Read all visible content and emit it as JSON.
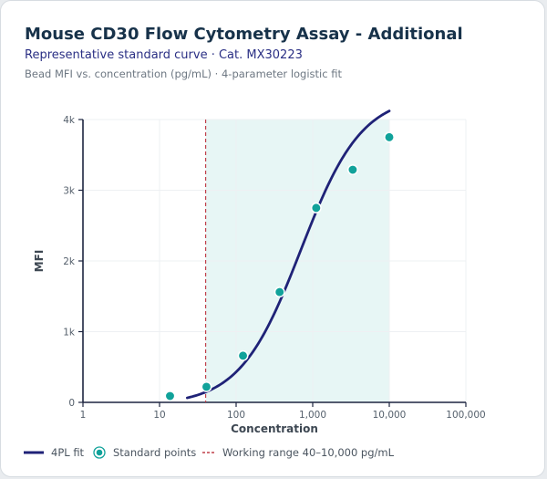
{
  "header": {
    "title": "Mouse CD30 Flow Cytometry Assay - Additional",
    "subtitle": "Representative standard curve · Cat. MX30223",
    "caption": "Bead MFI vs. concentration (pg/mL) · 4-parameter logistic fit"
  },
  "legend": {
    "fit_label": "4PL fit",
    "points_label": "Standard points",
    "range_label": "Working range 40–10,000 pg/mL"
  },
  "colors": {
    "curve": "#1f2277",
    "points": "#11a29a",
    "range_fill": "#e7f6f5",
    "lloq_line": "#c0404a"
  },
  "chart_data": {
    "type": "scatter",
    "x_scale": "log",
    "xlabel": "Concentration",
    "ylabel": "MFI",
    "xlim": [
      1,
      100000
    ],
    "ylim": [
      0,
      4000
    ],
    "x_ticks": [
      1,
      10,
      100,
      1000,
      10000,
      100000
    ],
    "x_tick_labels": [
      "1",
      "10",
      "100",
      "1,000",
      "10,000",
      "100,000"
    ],
    "y_ticks": [
      0,
      1000,
      2000,
      3000,
      4000
    ],
    "y_tick_labels": [
      "0",
      "1k",
      "2k",
      "3k",
      "4k"
    ],
    "grid": true,
    "working_range": [
      40,
      10000
    ],
    "lloq_line_x": 40,
    "series": [
      {
        "name": "Standard points",
        "points": [
          {
            "x": 13.7,
            "y": 90
          },
          {
            "x": 41,
            "y": 220
          },
          {
            "x": 123,
            "y": 660
          },
          {
            "x": 370,
            "y": 1560
          },
          {
            "x": 1111,
            "y": 2750
          },
          {
            "x": 3333,
            "y": 3290
          },
          {
            "x": 10000,
            "y": 3750
          }
        ]
      },
      {
        "name": "4PL fit",
        "type": "line",
        "x_range": [
          23,
          10000
        ],
        "params": {
          "bottom": -40,
          "top": 4350,
          "ec50": 700,
          "hill": 1.09
        }
      }
    ]
  }
}
